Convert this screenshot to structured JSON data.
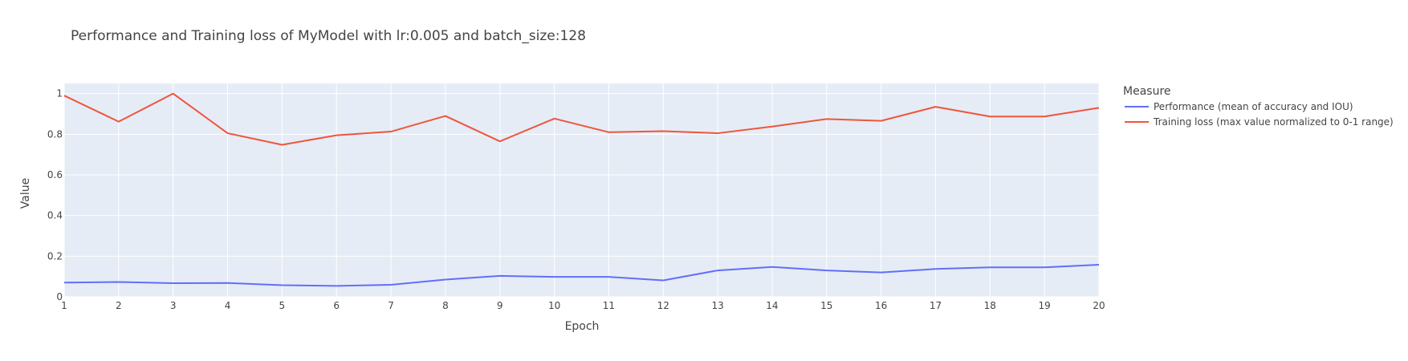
{
  "chart_data": {
    "type": "line",
    "title": "Performance and Training loss of MyModel with lr:0.005 and batch_size:128",
    "xlabel": "Epoch",
    "ylabel": "Value",
    "x": [
      1,
      2,
      3,
      4,
      5,
      6,
      7,
      8,
      9,
      10,
      11,
      12,
      13,
      14,
      15,
      16,
      17,
      18,
      19,
      20
    ],
    "xlim": [
      1,
      20
    ],
    "ylim": [
      0,
      1.05
    ],
    "yticks": [
      0,
      0.2,
      0.4,
      0.6,
      0.8,
      1
    ],
    "ytick_labels": [
      "0",
      "0.2",
      "0.4",
      "0.6",
      "0.8",
      "1"
    ],
    "grid": true,
    "plot_background": "#e5ecf6",
    "legend": {
      "title": "Measure",
      "placement": "right"
    },
    "series": [
      {
        "name": "Performance (mean of accuracy and IOU)",
        "color": "#636efa",
        "values": [
          0.07,
          0.073,
          0.067,
          0.068,
          0.057,
          0.054,
          0.059,
          0.085,
          0.103,
          0.098,
          0.098,
          0.081,
          0.13,
          0.147,
          0.13,
          0.12,
          0.137,
          0.145,
          0.145,
          0.158
        ]
      },
      {
        "name": "Training loss (max value normalized to 0-1 range)",
        "color": "#ef553b",
        "values": [
          0.99,
          0.862,
          1.0,
          0.805,
          0.748,
          0.795,
          0.813,
          0.89,
          0.765,
          0.877,
          0.81,
          0.815,
          0.805,
          0.838,
          0.875,
          0.866,
          0.935,
          0.887,
          0.887,
          0.93
        ]
      }
    ]
  }
}
